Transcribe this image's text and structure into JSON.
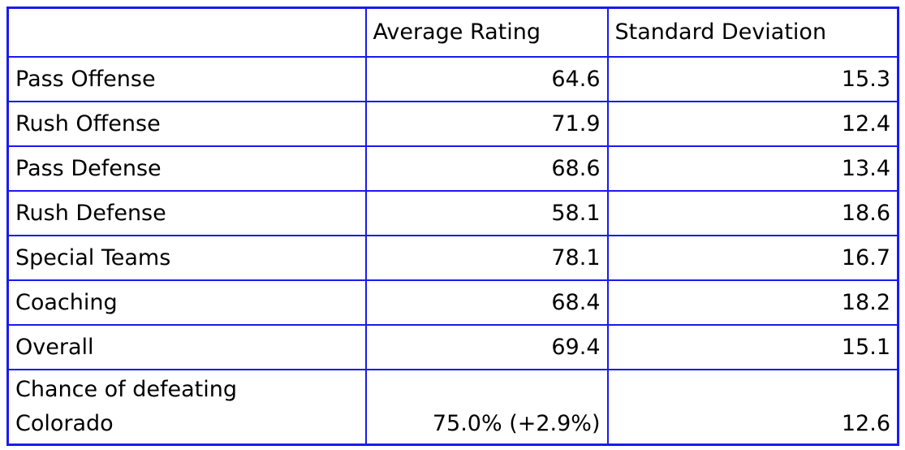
{
  "table": {
    "border_color": "#1a1af0",
    "columns": [
      "",
      "Average Rating",
      "Standard Deviation"
    ],
    "rows": [
      {
        "label": "Pass Offense",
        "avg": "64.6",
        "sd": "15.3"
      },
      {
        "label": "Rush Offense",
        "avg": "71.9",
        "sd": "12.4"
      },
      {
        "label": "Pass Defense",
        "avg": "68.6",
        "sd": "13.4"
      },
      {
        "label": "Rush Defense",
        "avg": "58.1",
        "sd": "18.6"
      },
      {
        "label": "Special Teams",
        "avg": "78.1",
        "sd": "16.7"
      },
      {
        "label": "Coaching",
        "avg": "68.4",
        "sd": "18.2"
      },
      {
        "label": "Overall",
        "avg": "69.4",
        "sd": "15.1"
      },
      {
        "label": "Chance of defeating\nColorado",
        "avg": "75.0% (+2.9%)",
        "sd": "12.6"
      }
    ]
  },
  "chart_data": {
    "type": "table",
    "title": "",
    "categories": [
      "Pass Offense",
      "Rush Offense",
      "Pass Defense",
      "Rush Defense",
      "Special Teams",
      "Coaching",
      "Overall",
      "Chance of defeating Colorado"
    ],
    "series": [
      {
        "name": "Average Rating",
        "values": [
          64.6,
          71.9,
          68.6,
          58.1,
          78.1,
          68.4,
          69.4,
          "75.0% (+2.9%)"
        ]
      },
      {
        "name": "Standard Deviation",
        "values": [
          15.3,
          12.4,
          13.4,
          18.6,
          16.7,
          18.2,
          15.1,
          12.6
        ]
      }
    ],
    "layout_hints": {
      "grid": "on",
      "border_color": "#1a1af0",
      "text_color": "#000000"
    }
  }
}
